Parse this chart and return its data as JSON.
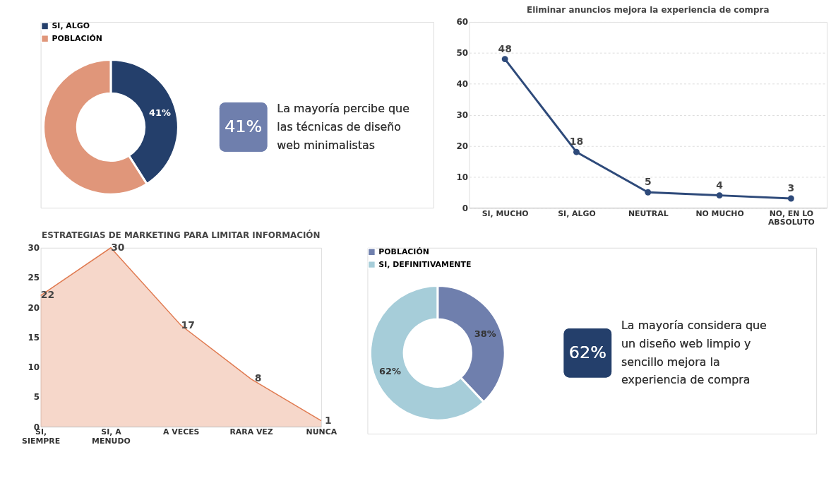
{
  "chart_data": [
    {
      "type": "donut",
      "categories": [
        "SI, ALGO",
        "POBLACIÓN"
      ],
      "values": [
        41,
        59
      ],
      "colors": [
        "#243f6b",
        "#e0967a"
      ],
      "value_labels": [
        "41%",
        null
      ],
      "legend": "top left",
      "annotations": [
        "41%",
        "La mayoría percibe que las técnicas de diseño web minimalistas"
      ]
    },
    {
      "type": "line",
      "title": "Eliminar anuncios mejora la experiencia de compra",
      "categories": [
        "SI, MUCHO",
        "SI, ALGO",
        "NEUTRAL",
        "NO MUCHO",
        "NO, EN LO ABSOLUTO"
      ],
      "series": [
        {
          "color": "#2e4a7a",
          "values": [
            48,
            18,
            5,
            4,
            3
          ]
        }
      ],
      "ylim": [
        0,
        60
      ],
      "yticks": [
        0,
        10,
        20,
        30,
        40,
        50,
        60
      ],
      "grid": "y",
      "data_labels": true,
      "marker": "circle",
      "line_style": "solid"
    },
    {
      "type": "area",
      "title": "ESTRATEGIAS DE MARKETING PARA LIMITAR INFORMACIÓN",
      "categories": [
        "SI, SIEMPRE",
        "SI, A MENUDO",
        "A VECES",
        "RARA VEZ",
        "NUNCA"
      ],
      "series": [
        {
          "color": "#e07a50",
          "values": [
            22,
            30,
            17,
            8,
            1
          ]
        }
      ],
      "ylim": [
        0,
        30
      ],
      "yticks": [
        0,
        5,
        10,
        15,
        20,
        25,
        30
      ],
      "data_labels": true
    },
    {
      "type": "donut",
      "categories": [
        "POBLACIÓN",
        "SI, DEFINITIVAMENTE"
      ],
      "values": [
        38,
        62
      ],
      "colors": [
        "#6f7fad",
        "#a6cdd9"
      ],
      "value_labels": [
        "38%",
        "62%"
      ],
      "legend": "top left",
      "annotations": [
        "62%",
        "La mayoría considera que un diseño web limpio y sencillo mejora la experiencia de compra"
      ]
    }
  ]
}
